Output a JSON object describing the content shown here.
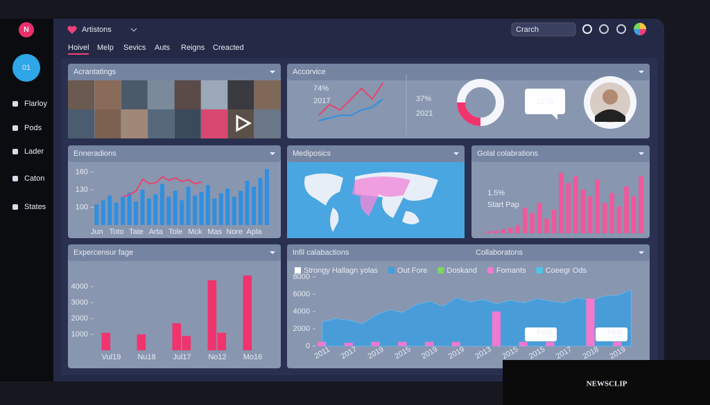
{
  "app": {
    "logo": "N",
    "title": "Artistons",
    "search": "Crarch"
  },
  "tabs": [
    "Hoivel",
    "Melp",
    "Sevics",
    "Auts",
    "Reigns",
    "Creacted"
  ],
  "sidebar": {
    "badge": "01",
    "items": [
      "Flarloy",
      "Pods",
      "Lader",
      "Caton",
      "States"
    ]
  },
  "panels": {
    "photos": "Acrantatings",
    "map": "Mediposics",
    "stats": {
      "stat": "37%",
      "year": "2021",
      "bubble": "1278"
    }
  },
  "chart_data": [
    {
      "type": "line",
      "title": "Accorvice",
      "annotations": [
        "74%",
        "2017"
      ],
      "ylim": [
        0,
        10
      ],
      "series": [
        {
          "color": "#e8436f",
          "values": [
            3,
            5,
            4,
            6,
            8,
            6,
            9
          ]
        },
        {
          "color": "#2f8fe0",
          "values": [
            2,
            2.5,
            3,
            3,
            4,
            4.5,
            6
          ]
        }
      ]
    },
    {
      "type": "bar",
      "title": "Enneradions",
      "ylim": [
        70,
        170
      ],
      "yticks": [
        100,
        130,
        160
      ],
      "categories": [
        "Jun",
        null,
        null,
        "Toto",
        null,
        null,
        "Tate",
        null,
        null,
        "Arta",
        null,
        null,
        "Tole",
        null,
        null,
        "Mck",
        null,
        null,
        "Mas",
        null,
        null,
        "Nore",
        null,
        null,
        "Apla",
        null,
        null
      ],
      "series": [
        {
          "color": "#2f8fe0",
          "values": [
            105,
            112,
            120,
            108,
            118,
            125,
            110,
            130,
            115,
            122,
            140,
            118,
            128,
            112,
            135,
            120,
            126,
            138,
            115,
            124,
            132,
            118,
            128,
            145,
            135,
            150,
            165
          ]
        },
        {
          "kind": "line",
          "color": "#e8436f",
          "values": [
            null,
            null,
            null,
            null,
            118,
            122,
            128,
            148,
            140,
            142,
            152,
            146,
            150,
            144,
            147,
            140,
            143,
            null,
            null,
            null,
            null,
            null,
            null,
            null,
            null,
            null,
            null
          ]
        }
      ]
    },
    {
      "type": "bar",
      "title": "Golal colabrations",
      "annotations": [
        "1.5%",
        "Start Pap"
      ],
      "ylim": [
        0,
        100
      ],
      "series": [
        {
          "color": "#f0589a",
          "values": [
            3,
            4,
            6,
            8,
            12,
            38,
            30,
            45,
            22,
            35,
            90,
            75,
            85,
            65,
            55,
            80,
            45,
            60,
            40,
            70,
            55,
            85
          ]
        }
      ]
    },
    {
      "type": "bar",
      "title": "Expercensur fage",
      "ylim": [
        0,
        5000
      ],
      "yticks": [
        1000,
        2000,
        3000,
        4000
      ],
      "categories": [
        "Vul19",
        "Nu18",
        "Jul17",
        "No12",
        "Mo16"
      ],
      "series": [
        {
          "color": "#f0346e",
          "values": [
            1100,
            1000,
            1700,
            4400,
            4700
          ]
        },
        {
          "color": "#f0346e",
          "values": [
            null,
            null,
            900,
            1100,
            null
          ]
        }
      ]
    },
    {
      "type": "area",
      "title": "Infil calabactions",
      "subtitle": "Collaboratons",
      "annotations": [
        "Feat",
        "Feat"
      ],
      "ylim": [
        0,
        8000
      ],
      "yticks": [
        0,
        2000,
        4000,
        6000,
        8000
      ],
      "categories": [
        "2011",
        null,
        "2017",
        null,
        "2019",
        null,
        "2015",
        null,
        "2019",
        null,
        "2019",
        null,
        "2013",
        null,
        "2015",
        null,
        "2015",
        null,
        "2017",
        null,
        "2018",
        null,
        "2019",
        null
      ],
      "series": [
        {
          "name": "Strongy Hallagn yolas",
          "color": "#ffffff"
        },
        {
          "name": "Out Fore",
          "color": "#3d9fe0",
          "values": [
            2800,
            3200,
            3000,
            2600,
            3600,
            4200,
            3900,
            4800,
            5200,
            4600,
            5600,
            5100,
            5400,
            4900,
            5300,
            5000,
            5500,
            5200,
            5000,
            5600,
            5300,
            5800,
            5900,
            6500
          ]
        },
        {
          "name": "Doskand",
          "color": "#7ad85a"
        },
        {
          "kind": "bar",
          "name": "Fomants",
          "color": "#f07ad0",
          "values": [
            500,
            null,
            400,
            null,
            500,
            null,
            500,
            null,
            500,
            null,
            500,
            null,
            null,
            4000,
            null,
            500,
            null,
            500,
            null,
            null,
            5500,
            null,
            500,
            null
          ]
        },
        {
          "name": "Coeegr Ods",
          "color": "#46c8e8"
        }
      ]
    }
  ],
  "watermark": "NEWSCLIP"
}
